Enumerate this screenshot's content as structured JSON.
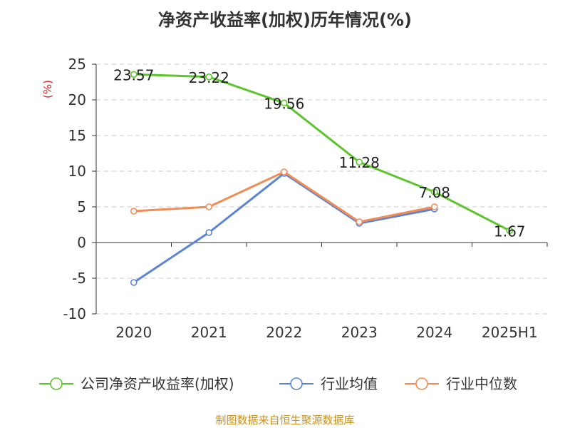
{
  "chart_data": {
    "type": "line",
    "title": "净资产收益率(加权)历年情况(%)",
    "ylabel": "(%)",
    "categories": [
      "2020",
      "2021",
      "2022",
      "2023",
      "2024",
      "2025H1"
    ],
    "ylim": [
      -10,
      25
    ],
    "yticks": [
      25,
      20,
      15,
      10,
      5,
      0,
      -5,
      -10
    ],
    "grid": true,
    "legend_position": "bottom",
    "series": [
      {
        "name": "公司净资产收益率(加权)",
        "color": "#5cc52b",
        "values": [
          23.57,
          23.22,
          19.56,
          11.28,
          7.08,
          1.67
        ],
        "labels": [
          "23.57",
          "23.22",
          "19.56",
          "11.28",
          "7.08",
          "1.67"
        ]
      },
      {
        "name": "行业均值",
        "color": "#5b84d6",
        "values": [
          -5.6,
          1.4,
          9.7,
          2.7,
          4.7,
          null
        ]
      },
      {
        "name": "行业中位数",
        "color": "#f28c55",
        "values": [
          4.4,
          5.0,
          9.9,
          2.9,
          5.0,
          null
        ]
      }
    ]
  },
  "footer": {
    "source": "制图数据来自恒生聚源数据库"
  }
}
